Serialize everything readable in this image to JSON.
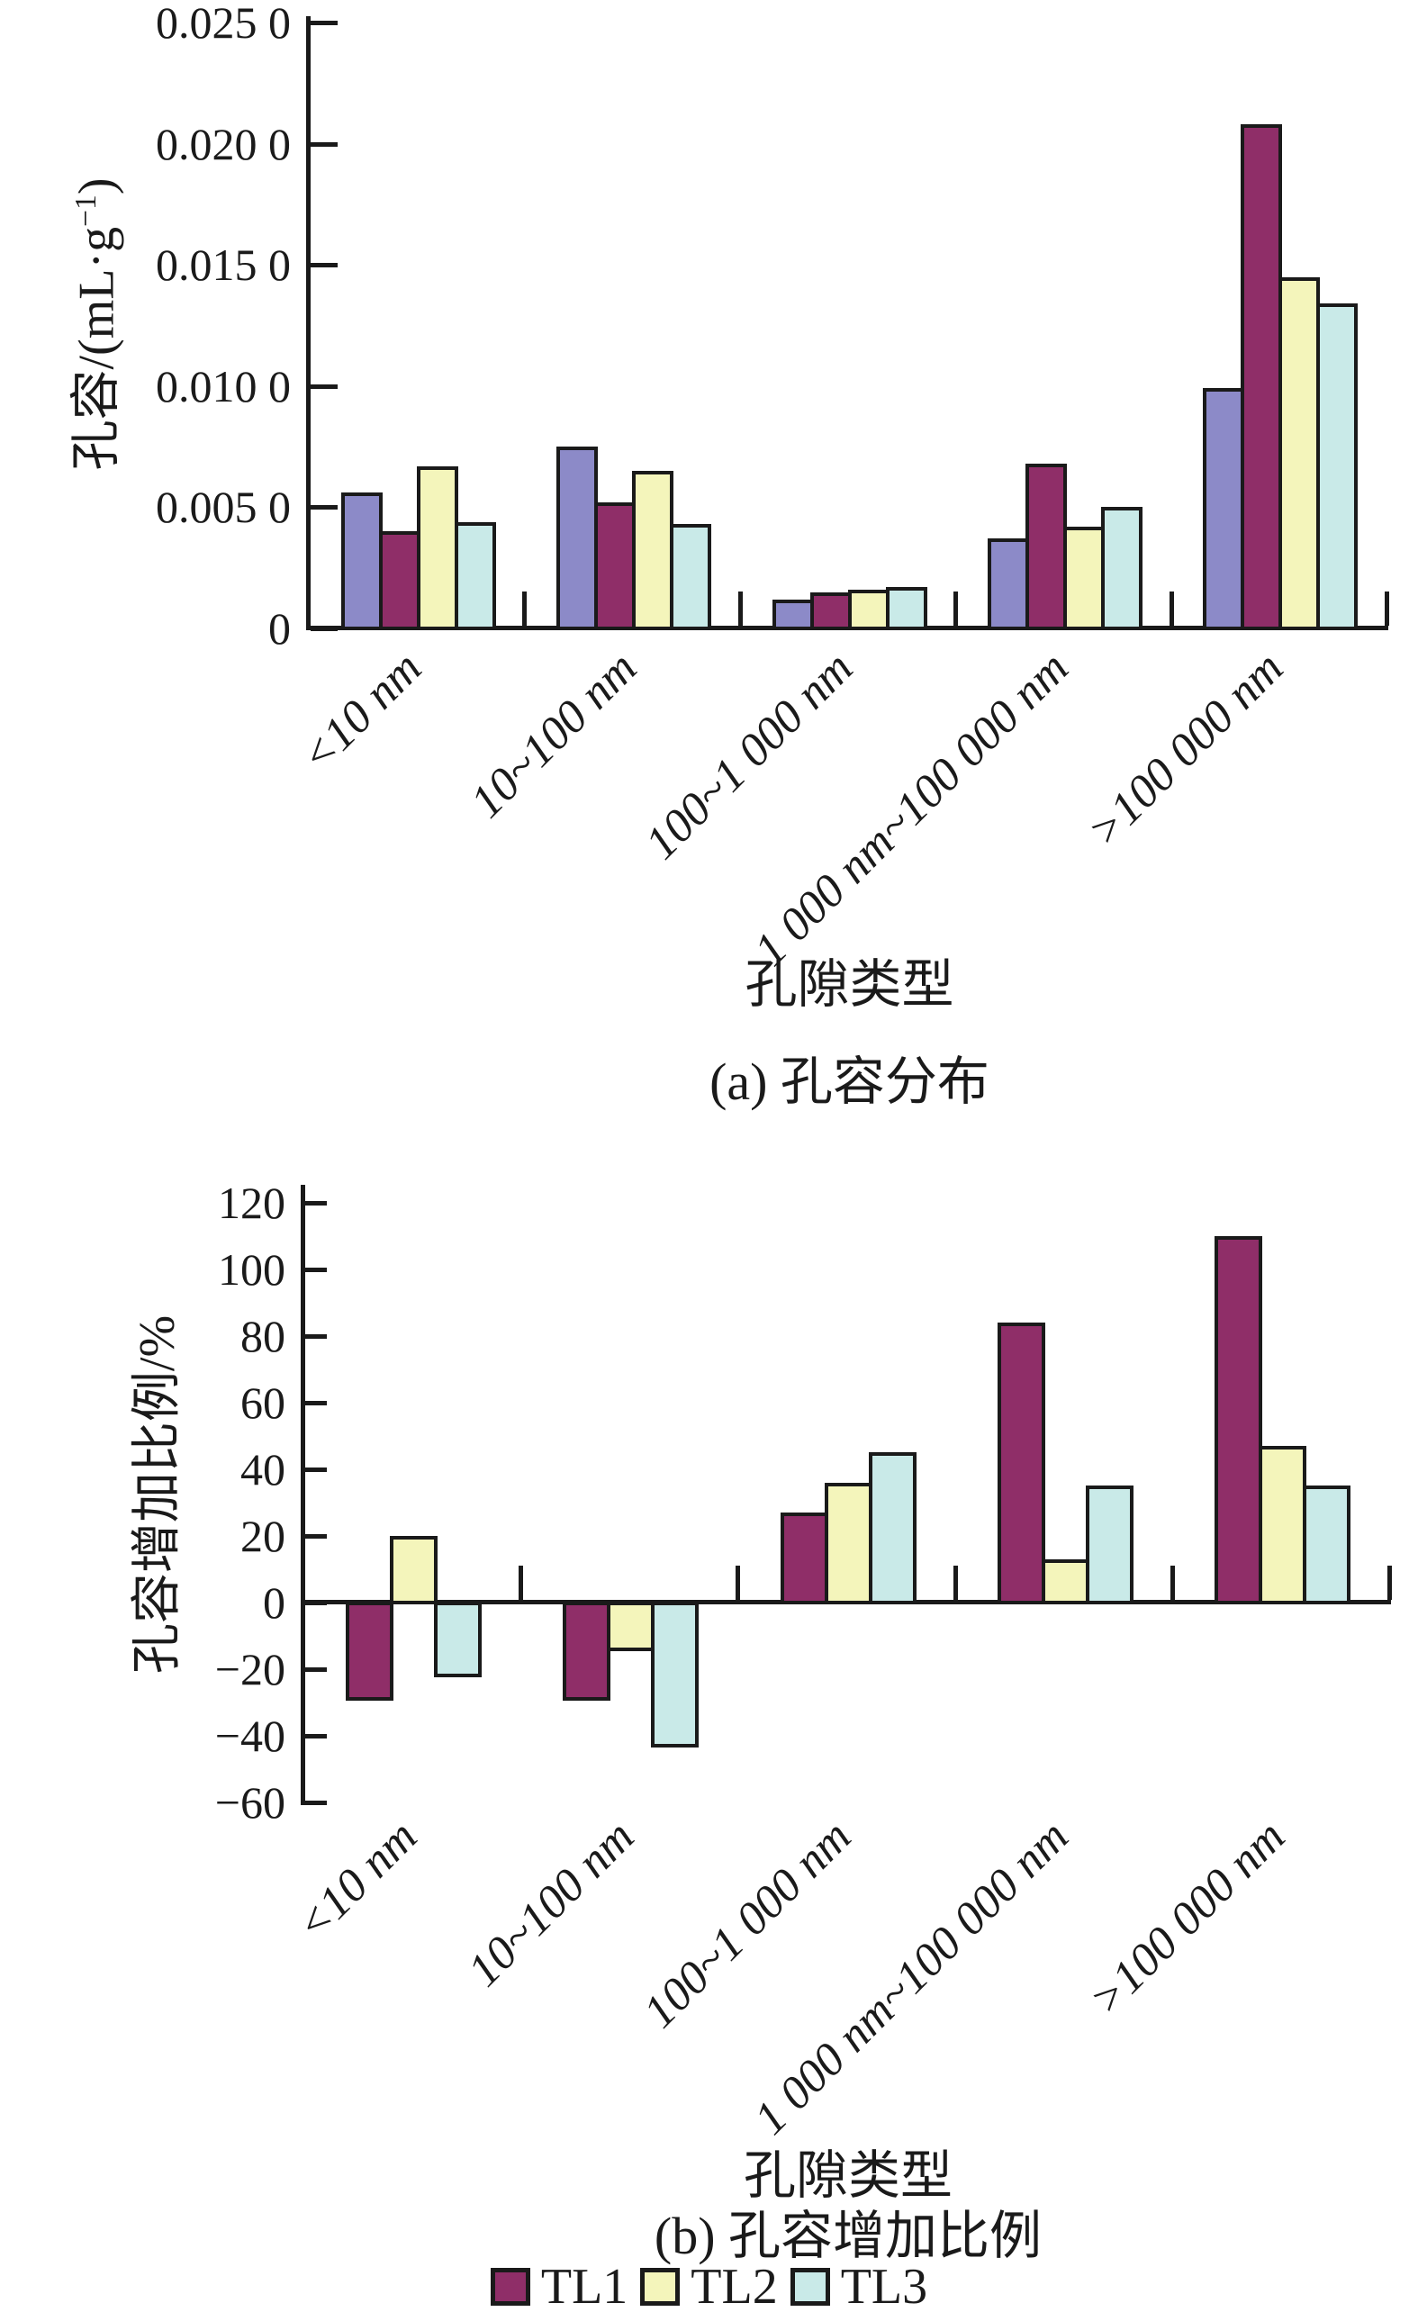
{
  "style": {
    "background": "#ffffff",
    "axis_color": "#1a1a1a",
    "bar_border_color": "#1a1a1a",
    "series_colors": {
      "unlabeled_blue": "#8c8ac8",
      "TL1": "#8f2e68",
      "TL2": "#f4f5bb",
      "TL3": "#c9eae8"
    }
  },
  "legend": {
    "items": [
      {
        "label": "TL1",
        "color": "#8f2e68"
      },
      {
        "label": "TL2",
        "color": "#f4f5bb"
      },
      {
        "label": "TL3",
        "color": "#c9eae8"
      }
    ]
  },
  "chart_data": [
    {
      "type": "bar",
      "panel": "a",
      "title": "(a) 孔容分布",
      "xlabel": "孔隙类型",
      "ylabel": "孔容/(mL·g⁻¹)",
      "ylabel_parts": {
        "pre": "孔容/(mL·g",
        "sup": "−1",
        "post": ")"
      },
      "ylim": [
        0,
        0.025
      ],
      "grid": false,
      "legend_position": "none",
      "categories": [
        "<10 nm",
        "10~100 nm",
        "100~1 000 nm",
        "1 000 nm~100 000 nm",
        ">100 000 nm"
      ],
      "yticks": [
        {
          "value": 0,
          "label": "0"
        },
        {
          "value": 0.005,
          "label": "0.005 0"
        },
        {
          "value": 0.01,
          "label": "0.010 0"
        },
        {
          "value": 0.015,
          "label": "0.015 0"
        },
        {
          "value": 0.02,
          "label": "0.020 0"
        },
        {
          "value": 0.025,
          "label": "0.025 0"
        }
      ],
      "series": [
        {
          "name": "",
          "legend_shown": false,
          "color": "#8c8ac8",
          "values": [
            0.0056,
            0.0075,
            0.0012,
            0.0037,
            0.0099
          ]
        },
        {
          "name": "TL1",
          "color": "#8f2e68",
          "values": [
            0.004,
            0.0052,
            0.0015,
            0.0068,
            0.0208
          ]
        },
        {
          "name": "TL2",
          "color": "#f4f5bb",
          "values": [
            0.0067,
            0.0065,
            0.0016,
            0.0042,
            0.0145
          ]
        },
        {
          "name": "TL3",
          "color": "#c9eae8",
          "values": [
            0.0044,
            0.0043,
            0.0017,
            0.005,
            0.0134
          ]
        }
      ]
    },
    {
      "type": "bar",
      "panel": "b",
      "title": "(b) 孔容增加比例",
      "xlabel": "孔隙类型",
      "ylabel": "孔容增加比例/%",
      "ylim": [
        -60,
        120
      ],
      "grid": false,
      "legend_position": "bottom",
      "categories": [
        "<10 nm",
        "10~100 nm",
        "100~1 000 nm",
        "1 000 nm~100 000 nm",
        ">100 000 nm"
      ],
      "yticks": [
        {
          "value": 120,
          "label": "120"
        },
        {
          "value": 100,
          "label": "100"
        },
        {
          "value": 80,
          "label": "80"
        },
        {
          "value": 60,
          "label": "60"
        },
        {
          "value": 40,
          "label": "40"
        },
        {
          "value": 20,
          "label": "20"
        },
        {
          "value": 0,
          "label": "0"
        },
        {
          "value": -20,
          "label": "−20"
        },
        {
          "value": -40,
          "label": "−40"
        },
        {
          "value": -60,
          "label": "−60"
        }
      ],
      "series": [
        {
          "name": "TL1",
          "color": "#8f2e68",
          "values": [
            -29,
            -29,
            27,
            84,
            110
          ]
        },
        {
          "name": "TL2",
          "color": "#f4f5bb",
          "values": [
            20,
            -14,
            36,
            13,
            47
          ]
        },
        {
          "name": "TL3",
          "color": "#c9eae8",
          "values": [
            -22,
            -43,
            45,
            35,
            35
          ]
        }
      ]
    }
  ]
}
